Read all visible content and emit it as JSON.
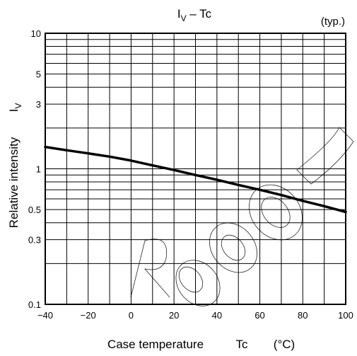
{
  "chart_data": {
    "type": "line",
    "title": "I",
    "title_sub": "V",
    "title_suffix": " – Tc",
    "note": "(typ.)",
    "xlabel_main": "Case temperature",
    "xlabel_symbol": "Tc",
    "xlabel_unit": "(°C)",
    "ylabel_main": "Relative intensity",
    "ylabel_symbol": "I",
    "ylabel_symbol_sub": "V",
    "xlim": [
      -40,
      100
    ],
    "ylim": [
      0.1,
      10
    ],
    "yscale": "log",
    "grid": true,
    "x_ticks": [
      "−40",
      "−20",
      "0",
      "20",
      "40",
      "60",
      "80",
      "100"
    ],
    "y_ticks": [
      "0.1",
      "0.3",
      "0.5",
      "1",
      "3",
      "5",
      "10"
    ],
    "series": [
      {
        "x": [
          -40,
          -30,
          -20,
          -10,
          0,
          10,
          20,
          30,
          40,
          50,
          60,
          70,
          80,
          90,
          100
        ],
        "y": [
          1.45,
          1.37,
          1.3,
          1.23,
          1.15,
          1.06,
          0.98,
          0.9,
          0.83,
          0.76,
          0.7,
          0.64,
          0.58,
          0.53,
          0.48
        ]
      }
    ]
  }
}
